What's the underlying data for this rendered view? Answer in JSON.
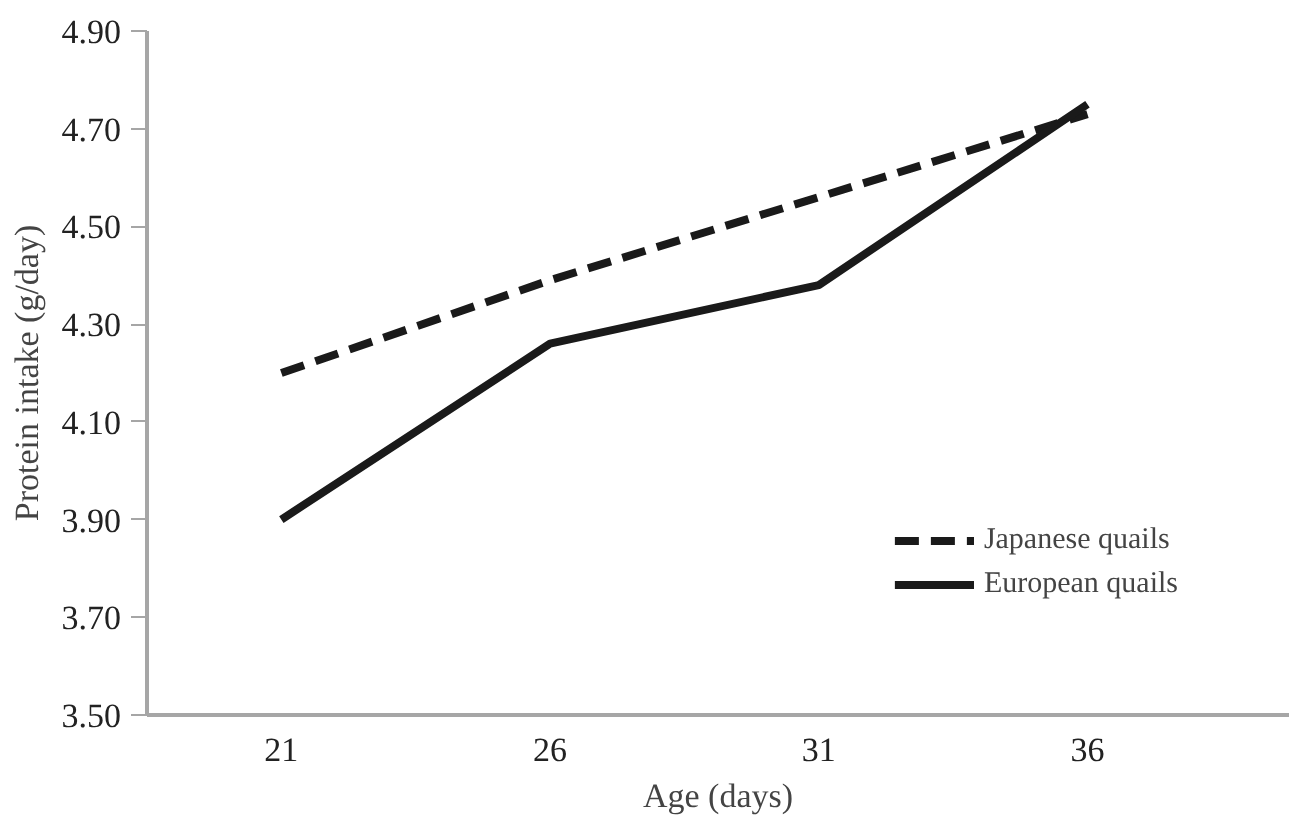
{
  "chart_data": {
    "type": "line",
    "xlabel": "Age (days)",
    "ylabel": "Protein intake (g/day)",
    "categories": [
      "21",
      "26",
      "31",
      "36"
    ],
    "series": [
      {
        "name": "Japanese quails",
        "color": "#1a1a1a",
        "values": [
          4.2,
          4.39,
          4.56,
          4.73
        ],
        "line_style": "dashed"
      },
      {
        "name": "European quails",
        "color": "#1a1a1a",
        "values": [
          3.9,
          4.26,
          4.38,
          4.75
        ],
        "line_style": "solid"
      }
    ],
    "ylim": [
      3.5,
      4.9
    ],
    "yticks": [
      {
        "value": 3.5,
        "label": "3.50"
      },
      {
        "value": 3.7,
        "label": "3.70"
      },
      {
        "value": 3.9,
        "label": "3.90"
      },
      {
        "value": 4.1,
        "label": "4.10"
      },
      {
        "value": 4.3,
        "label": "4.30"
      },
      {
        "value": 4.5,
        "label": "4.50"
      },
      {
        "value": 4.7,
        "label": "4.70"
      },
      {
        "value": 4.9,
        "label": "4.90"
      }
    ],
    "grid": false,
    "legend": "bottom right",
    "marker": "none"
  }
}
